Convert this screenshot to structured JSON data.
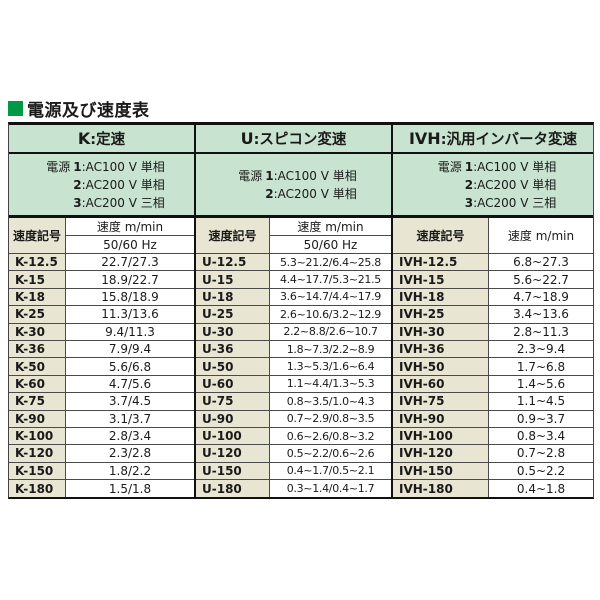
{
  "page": {
    "title_text": "電源及び速度表"
  },
  "colors": {
    "header_green": "#c8e3cf",
    "code_beige": "#e8e5d3",
    "title_square_green": "#009944"
  },
  "tables": [
    {
      "title_prefix": "K",
      "title_suffix": ":定速",
      "power_lines": [
        {
          "head": "電源",
          "num": "1",
          "rest": ":AC100 V 単相"
        },
        {
          "head": "",
          "num": "2",
          "rest": ":AC200 V 単相"
        },
        {
          "head": "",
          "num": "3",
          "rest": ":AC200 V 三相"
        }
      ],
      "col_code": "速度記号",
      "col_speed": "速度 m/min",
      "col_hz": "50/60 Hz",
      "rows": [
        {
          "code": "K-12.5",
          "value": "22.7/27.3"
        },
        {
          "code": "K-15",
          "value": "18.9/22.7"
        },
        {
          "code": "K-18",
          "value": "15.8/18.9"
        },
        {
          "code": "K-25",
          "value": "11.3/13.6"
        },
        {
          "code": "K-30",
          "value": "9.4/11.3"
        },
        {
          "code": "K-36",
          "value": "7.9/9.4"
        },
        {
          "code": "K-50",
          "value": "5.6/6.8"
        },
        {
          "code": "K-60",
          "value": "4.7/5.6"
        },
        {
          "code": "K-75",
          "value": "3.7/4.5"
        },
        {
          "code": "K-90",
          "value": "3.1/3.7"
        },
        {
          "code": "K-100",
          "value": "2.8/3.4"
        },
        {
          "code": "K-120",
          "value": "2.3/2.8"
        },
        {
          "code": "K-150",
          "value": "1.8/2.2"
        },
        {
          "code": "K-180",
          "value": "1.5/1.8"
        }
      ]
    },
    {
      "title_prefix": "U",
      "title_suffix": ":スピコン変速",
      "power_lines": [
        {
          "head": "電源",
          "num": "1",
          "rest": ":AC100 V 単相"
        },
        {
          "head": "",
          "num": "2",
          "rest": ":AC200 V 単相"
        }
      ],
      "col_code": "速度記号",
      "col_speed": "速度 m/min",
      "col_hz": "50/60 Hz",
      "rows": [
        {
          "code": "U-12.5",
          "value": "5.3~21.2/6.4~25.8"
        },
        {
          "code": "U-15",
          "value": "4.4~17.7/5.3~21.5"
        },
        {
          "code": "U-18",
          "value": "3.6~14.7/4.4~17.9"
        },
        {
          "code": "U-25",
          "value": "2.6~10.6/3.2~12.9"
        },
        {
          "code": "U-30",
          "value": "2.2~8.8/2.6~10.7"
        },
        {
          "code": "U-36",
          "value": "1.8~7.3/2.2~8.9"
        },
        {
          "code": "U-50",
          "value": "1.3~5.3/1.6~6.4"
        },
        {
          "code": "U-60",
          "value": "1.1~4.4/1.3~5.3"
        },
        {
          "code": "U-75",
          "value": "0.8~3.5/1.0~4.3"
        },
        {
          "code": "U-90",
          "value": "0.7~2.9/0.8~3.5"
        },
        {
          "code": "U-100",
          "value": "0.6~2.6/0.8~3.2"
        },
        {
          "code": "U-120",
          "value": "0.5~2.2/0.6~2.6"
        },
        {
          "code": "U-150",
          "value": "0.4~1.7/0.5~2.1"
        },
        {
          "code": "U-180",
          "value": "0.3~1.4/0.4~1.7"
        }
      ]
    },
    {
      "title_prefix": "IVH",
      "title_suffix": ":汎用インバータ変速",
      "power_lines": [
        {
          "head": "電源",
          "num": "1",
          "rest": ":AC100 V 単相"
        },
        {
          "head": "",
          "num": "2",
          "rest": ":AC200 V 単相"
        },
        {
          "head": "",
          "num": "3",
          "rest": ":AC200 V 三相"
        }
      ],
      "col_code": "速度記号",
      "col_speed": "速度 m/min",
      "rows": [
        {
          "code": "IVH-12.5",
          "value": "6.8~27.3"
        },
        {
          "code": "IVH-15",
          "value": "5.6~22.7"
        },
        {
          "code": "IVH-18",
          "value": "4.7~18.9"
        },
        {
          "code": "IVH-25",
          "value": "3.4~13.6"
        },
        {
          "code": "IVH-30",
          "value": "2.8~11.3"
        },
        {
          "code": "IVH-36",
          "value": "2.3~9.4"
        },
        {
          "code": "IVH-50",
          "value": "1.7~6.8"
        },
        {
          "code": "IVH-60",
          "value": "1.4~5.6"
        },
        {
          "code": "IVH-75",
          "value": "1.1~4.5"
        },
        {
          "code": "IVH-90",
          "value": "0.9~3.7"
        },
        {
          "code": "IVH-100",
          "value": "0.8~3.4"
        },
        {
          "code": "IVH-120",
          "value": "0.7~2.8"
        },
        {
          "code": "IVH-150",
          "value": "0.5~2.2"
        },
        {
          "code": "IVH-180",
          "value": "0.4~1.8"
        }
      ]
    }
  ]
}
